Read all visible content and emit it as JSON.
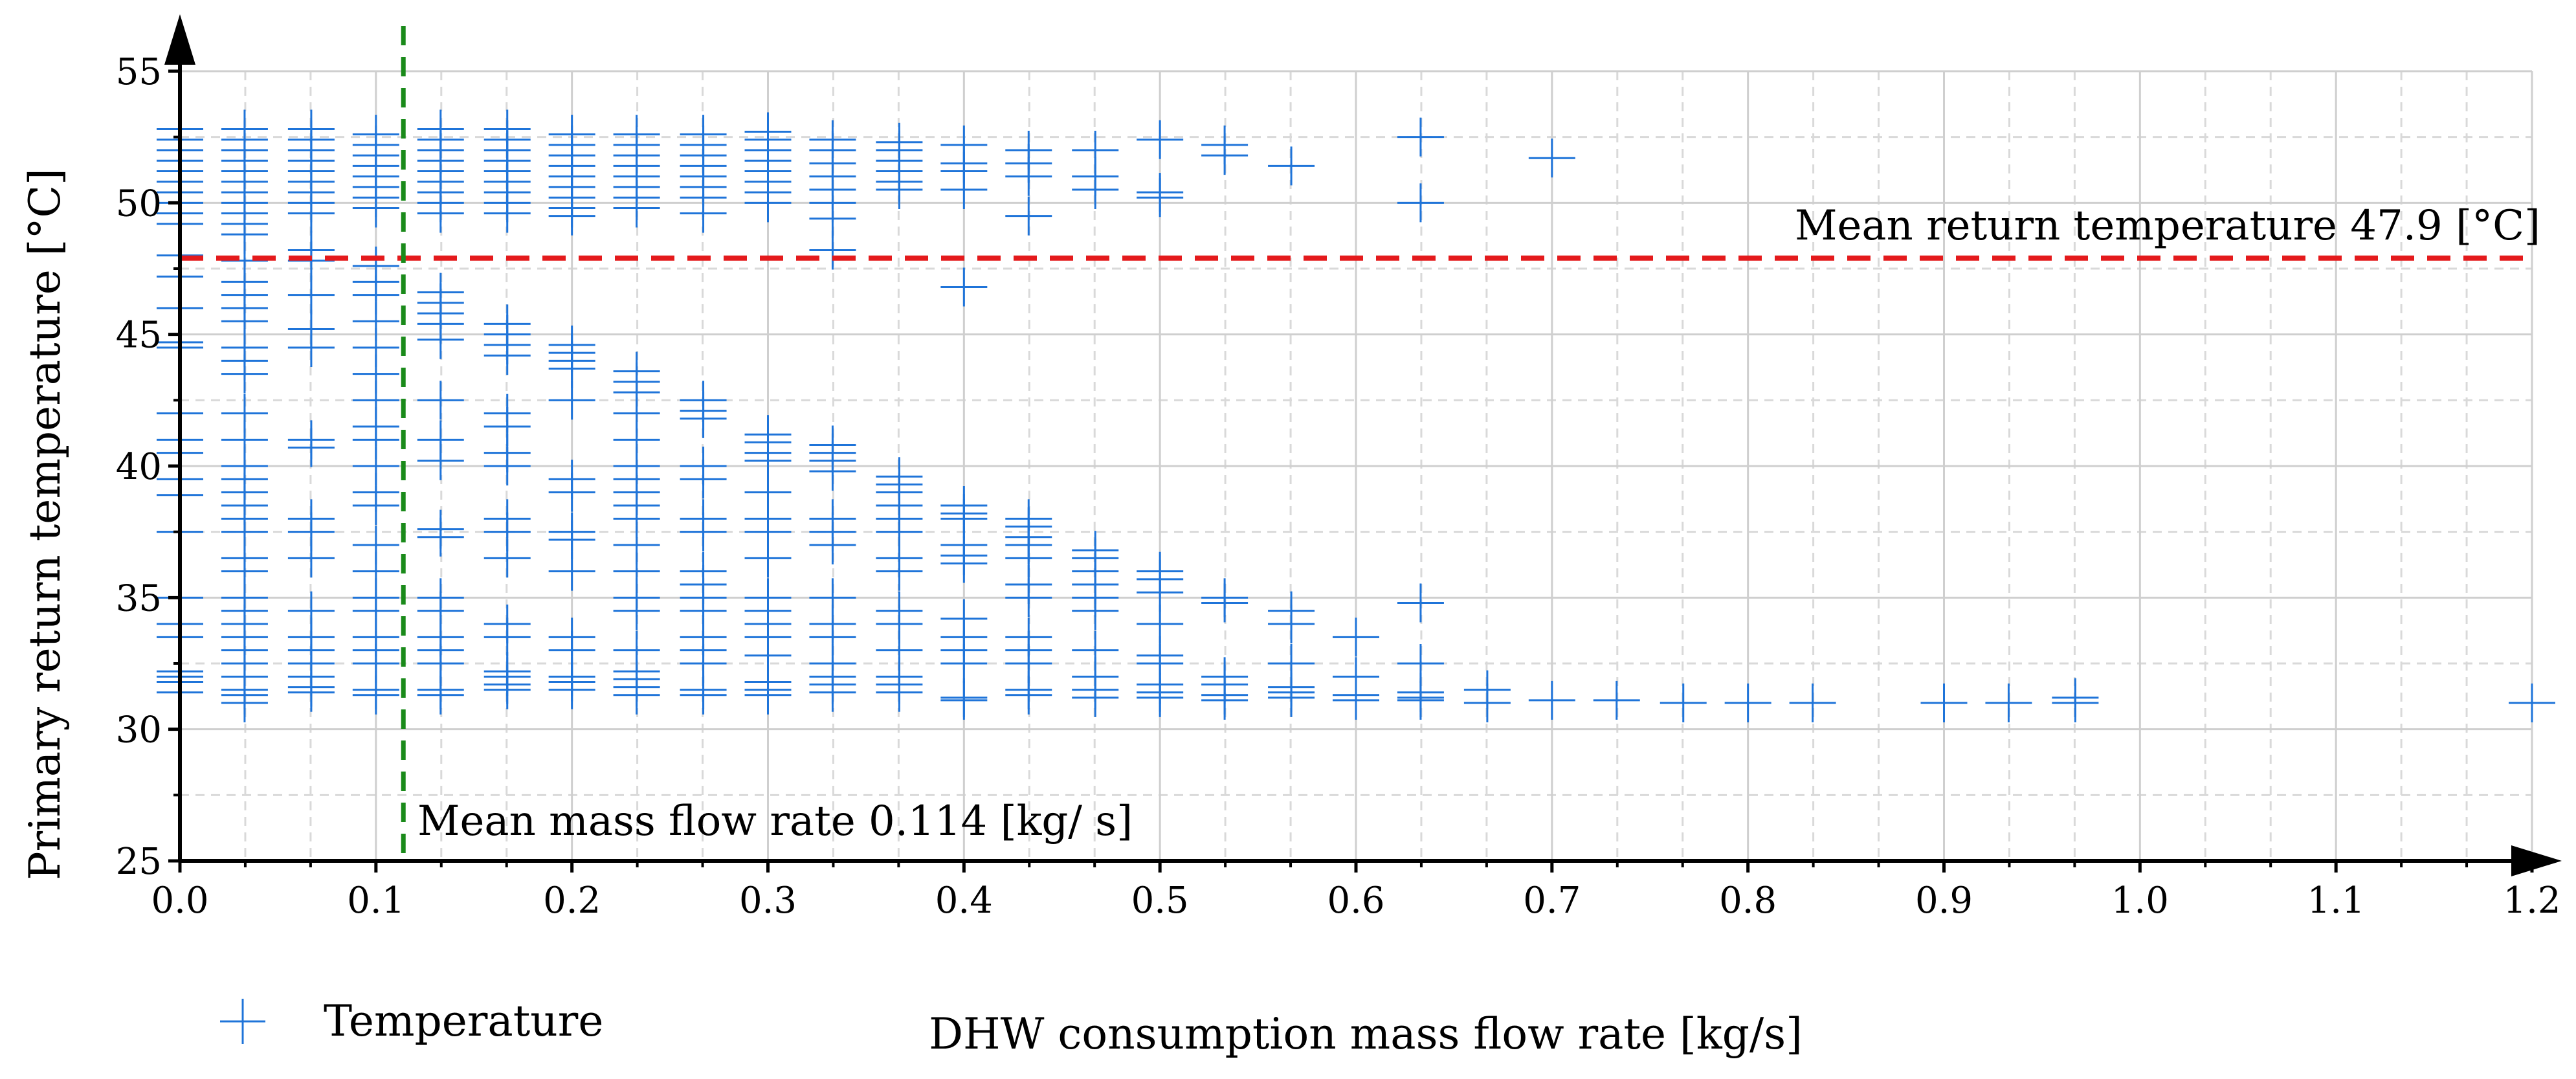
{
  "chart_data": {
    "type": "scatter",
    "title": "",
    "xlabel": "DHW consumption mass flow rate [kg/s]",
    "ylabel": "Primary return temperature [°C]",
    "xlim": [
      0,
      1.2
    ],
    "ylim": [
      25,
      55
    ],
    "x_ticks": [
      "0.0",
      "0.1",
      "0.2",
      "0.3",
      "0.4",
      "0.5",
      "0.6",
      "0.7",
      "0.8",
      "0.9",
      "1.0",
      "1.1",
      "1.2"
    ],
    "y_ticks": [
      "25",
      "30",
      "35",
      "40",
      "45",
      "50",
      "55"
    ],
    "grid": true,
    "legend": {
      "position": "bottom-left",
      "entries": [
        "Temperature"
      ]
    },
    "colors": {
      "points": "#1f74d9",
      "mean_temp_line": "#e41a1c",
      "mean_flow_line": "#1a8a1a"
    },
    "annotations": {
      "mean_temperature": {
        "value": 47.9,
        "label": "Mean return temperature 47.9 [°C]"
      },
      "mean_flow": {
        "value": 0.114,
        "label": "Mean mass flow rate 0.114 [kg/ s]"
      }
    },
    "series": [
      {
        "name": "Temperature",
        "columns": [
          {
            "x": 0.0,
            "y": [
              49.2,
              49.6,
              50.0,
              50.4,
              50.8,
              51.2,
              51.6,
              52.0,
              52.4,
              52.8,
              48.0,
              47.2,
              46.0,
              44.7,
              44.5,
              42.0,
              41.0,
              40.5,
              39.5,
              38.9,
              37.5,
              35.0,
              34.0,
              33.5,
              32.2,
              32.0,
              31.8,
              31.4
            ]
          },
          {
            "x": 0.033,
            "y": [
              48.8,
              49.2,
              49.6,
              50.0,
              50.4,
              50.8,
              51.2,
              51.6,
              52.0,
              52.4,
              52.8,
              47.8,
              47.0,
              46.5,
              46.0,
              45.5,
              44.5,
              44.0,
              43.5,
              42.0,
              41.0,
              40.0,
              39.5,
              39.0,
              38.5,
              38.0,
              37.5,
              36.5,
              36.0,
              35.0,
              34.5,
              34.0,
              33.5,
              33.0,
              32.5,
              32.0,
              31.5,
              31.3,
              31.0
            ]
          },
          {
            "x": 0.067,
            "y": [
              49.6,
              50.0,
              50.4,
              50.8,
              51.2,
              51.6,
              52.0,
              52.4,
              52.8,
              48.2,
              47.8,
              46.5,
              45.2,
              44.5,
              41.0,
              40.7,
              38.0,
              37.5,
              36.5,
              34.5,
              33.5,
              33.0,
              32.5,
              32.0,
              31.6,
              31.4
            ]
          },
          {
            "x": 0.1,
            "y": [
              49.8,
              50.2,
              50.6,
              51.0,
              51.4,
              51.8,
              52.2,
              52.6,
              47.6,
              47.0,
              46.5,
              45.5,
              44.5,
              43.5,
              42.5,
              41.5,
              41.0,
              40.0,
              39.0,
              38.5,
              37.0,
              36.0,
              35.0,
              34.5,
              33.5,
              33.0,
              32.5,
              31.5,
              31.3
            ]
          },
          {
            "x": 0.133,
            "y": [
              49.6,
              50.0,
              50.4,
              50.8,
              51.2,
              51.6,
              52.0,
              52.4,
              52.8,
              46.6,
              46.2,
              45.8,
              45.4,
              44.8,
              42.5,
              41.0,
              40.2,
              37.6,
              37.3,
              35.0,
              34.5,
              33.5,
              33.0,
              32.5,
              31.5,
              31.3
            ]
          },
          {
            "x": 0.167,
            "y": [
              49.6,
              50.0,
              50.4,
              50.8,
              51.2,
              51.6,
              52.0,
              52.4,
              52.8,
              45.4,
              45.0,
              44.6,
              44.2,
              42.0,
              41.5,
              40.5,
              40.0,
              38.0,
              37.5,
              36.5,
              34.0,
              33.5,
              32.2,
              32.0,
              31.7,
              31.5
            ]
          },
          {
            "x": 0.2,
            "y": [
              49.5,
              49.8,
              50.2,
              50.6,
              51.0,
              51.4,
              51.8,
              52.2,
              52.6,
              44.6,
              44.3,
              44.0,
              43.7,
              42.5,
              39.5,
              39.0,
              37.5,
              37.2,
              36.0,
              33.5,
              33.0,
              32.0,
              31.8,
              31.5
            ]
          },
          {
            "x": 0.233,
            "y": [
              49.8,
              50.2,
              50.6,
              51.0,
              51.4,
              51.8,
              52.2,
              52.6,
              43.6,
              43.2,
              42.8,
              42.0,
              41.0,
              40.0,
              39.5,
              39.0,
              38.5,
              38.0,
              37.0,
              36.0,
              35.0,
              34.5,
              33.0,
              32.2,
              31.9,
              31.6,
              31.3
            ]
          },
          {
            "x": 0.267,
            "y": [
              49.6,
              50.2,
              50.6,
              51.0,
              51.4,
              51.8,
              52.2,
              52.6,
              42.5,
              42.1,
              41.8,
              40.0,
              39.5,
              38.0,
              37.5,
              36.0,
              35.5,
              35.0,
              34.5,
              33.5,
              33.0,
              32.5,
              31.5,
              31.3
            ]
          },
          {
            "x": 0.3,
            "y": [
              50.0,
              50.4,
              50.8,
              51.2,
              51.6,
              52.0,
              52.4,
              52.7,
              41.2,
              40.9,
              40.5,
              40.2,
              39.0,
              38.0,
              37.5,
              36.5,
              35.0,
              34.5,
              34.0,
              33.5,
              32.8,
              31.8,
              31.5,
              31.3
            ]
          },
          {
            "x": 0.333,
            "y": [
              48.2,
              49.4,
              50.0,
              50.5,
              51.0,
              51.5,
              52.0,
              52.4,
              40.8,
              40.5,
              40.2,
              39.8,
              38.0,
              37.5,
              37.0,
              35.0,
              34.0,
              33.5,
              32.5,
              32.0,
              31.7,
              31.4
            ]
          },
          {
            "x": 0.367,
            "y": [
              50.5,
              50.8,
              51.2,
              51.6,
              52.0,
              52.3,
              39.6,
              39.3,
              39.0,
              38.5,
              38.0,
              37.5,
              36.5,
              36.0,
              34.5,
              34.0,
              33.0,
              32.0,
              31.7,
              31.4
            ]
          },
          {
            "x": 0.4,
            "y": [
              46.8,
              50.5,
              51.2,
              51.5,
              52.2,
              38.5,
              38.2,
              38.0,
              37.0,
              36.6,
              36.3,
              34.2,
              33.5,
              33.0,
              32.5,
              31.2,
              31.1
            ]
          },
          {
            "x": 0.433,
            "y": [
              49.5,
              51.0,
              51.5,
              52.0,
              38.0,
              37.7,
              37.3,
              37.0,
              36.5,
              35.5,
              35.0,
              33.5,
              33.0,
              32.5,
              31.5,
              31.3
            ]
          },
          {
            "x": 0.467,
            "y": [
              50.5,
              51.0,
              52.0,
              36.8,
              36.5,
              36.0,
              35.5,
              35.0,
              34.5,
              33.0,
              32.0,
              31.5,
              31.2
            ]
          },
          {
            "x": 0.5,
            "y": [
              50.2,
              50.4,
              52.4,
              36.0,
              35.7,
              35.2,
              34.0,
              32.8,
              32.5,
              31.7,
              31.4,
              31.2
            ]
          },
          {
            "x": 0.533,
            "y": [
              51.8,
              52.2,
              35.0,
              34.8,
              32.0,
              31.7,
              31.3,
              31.1
            ]
          },
          {
            "x": 0.567,
            "y": [
              51.4,
              34.5,
              34.0,
              32.5,
              31.6,
              31.4,
              31.2
            ]
          },
          {
            "x": 0.6,
            "y": [
              33.5,
              32.0,
              31.3,
              31.1
            ]
          },
          {
            "x": 0.633,
            "y": [
              52.5,
              50.0,
              34.8,
              32.5,
              31.4,
              31.2,
              31.1
            ]
          },
          {
            "x": 0.667,
            "y": [
              31.5,
              31.0
            ]
          },
          {
            "x": 0.7,
            "y": [
              51.7,
              31.1
            ]
          },
          {
            "x": 0.733,
            "y": [
              31.1
            ]
          },
          {
            "x": 0.767,
            "y": [
              31.0
            ]
          },
          {
            "x": 0.8,
            "y": [
              31.0
            ]
          },
          {
            "x": 0.833,
            "y": [
              31.0
            ]
          },
          {
            "x": 0.9,
            "y": [
              31.0
            ]
          },
          {
            "x": 0.933,
            "y": [
              31.0
            ]
          },
          {
            "x": 0.967,
            "y": [
              31.2,
              31.0
            ]
          },
          {
            "x": 1.2,
            "y": [
              31.0
            ]
          }
        ]
      }
    ]
  }
}
